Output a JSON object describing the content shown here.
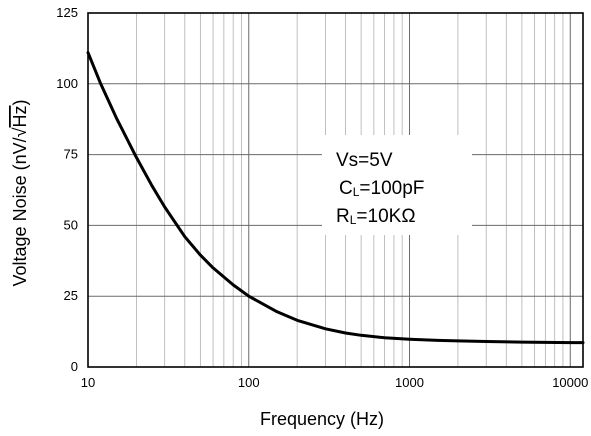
{
  "chart_data": {
    "type": "line",
    "title": "",
    "xlabel": "Frequency (Hz)",
    "ylabel_main": "Voltage Noise (nV/",
    "ylabel_sqrt": "√",
    "ylabel_radicand": "Hz",
    "ylabel_close": ")",
    "x_scale": "log",
    "xlim": [
      10,
      12000
    ],
    "ylim": [
      0,
      125
    ],
    "x_ticks": [
      {
        "value": 10,
        "label": "10"
      },
      {
        "value": 100,
        "label": "100"
      },
      {
        "value": 1000,
        "label": "1000"
      },
      {
        "value": 10000,
        "label": "10000"
      }
    ],
    "y_ticks": [
      {
        "value": 0,
        "label": "0"
      },
      {
        "value": 25,
        "label": "25"
      },
      {
        "value": 50,
        "label": "50"
      },
      {
        "value": 75,
        "label": "75"
      },
      {
        "value": 100,
        "label": "100"
      },
      {
        "value": 125,
        "label": "125"
      }
    ],
    "grid": true,
    "series": [
      {
        "x": [
          10,
          12,
          15,
          20,
          25,
          30,
          40,
          50,
          60,
          80,
          100,
          150,
          200,
          300,
          400,
          500,
          700,
          1000,
          1500,
          2000,
          3000,
          5000,
          7000,
          10000,
          12000
        ],
        "y": [
          111,
          100,
          88,
          74,
          64,
          56.5,
          46,
          39.5,
          35,
          29,
          25,
          19.5,
          16.5,
          13.5,
          12,
          11.2,
          10.3,
          9.8,
          9.4,
          9.2,
          9.0,
          8.8,
          8.7,
          8.6,
          8.6
        ]
      }
    ],
    "annotation": {
      "line1": "Vs=5V",
      "line2_prefix": "C",
      "line2_sub": "L",
      "line2_value": "=100pF",
      "line3_prefix": "R",
      "line3_sub": "L",
      "line3_value": "=10KΩ"
    }
  }
}
